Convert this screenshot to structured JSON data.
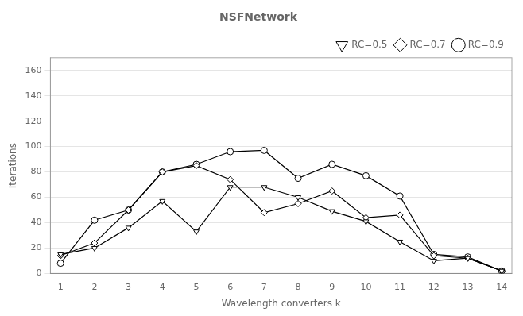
{
  "chart_data": {
    "type": "line",
    "title": "NSFNetwork",
    "xlabel": "Wavelength converters k",
    "ylabel": "Iterations",
    "x": [
      1,
      2,
      3,
      4,
      5,
      6,
      7,
      8,
      9,
      10,
      11,
      12,
      13,
      14
    ],
    "series": [
      {
        "name": "RC=0.5",
        "color": "#000000",
        "marker": "triangle_down",
        "values": [
          15,
          20,
          36,
          57,
          33,
          68,
          68,
          60,
          49,
          41,
          25,
          10,
          12,
          2
        ]
      },
      {
        "name": "RC=0.7",
        "color": "#000000",
        "marker": "diamond",
        "values": [
          14,
          24,
          50,
          80,
          85,
          74,
          48,
          55,
          65,
          44,
          46,
          14,
          12,
          2
        ]
      },
      {
        "name": "RC=0.9",
        "color": "#000000",
        "marker": "circle",
        "values": [
          8,
          42,
          50,
          80,
          86,
          96,
          97,
          75,
          86,
          77,
          61,
          15,
          13,
          2
        ]
      }
    ],
    "xlim": [
      0.7,
      14.3
    ],
    "xticks": [
      1,
      2,
      3,
      4,
      5,
      6,
      7,
      8,
      9,
      10,
      11,
      12,
      13,
      14
    ],
    "ylim": [
      0,
      170
    ],
    "yticks": [
      0,
      20,
      40,
      60,
      80,
      100,
      120,
      140,
      160
    ],
    "grid": "y",
    "legend": "upper right"
  }
}
